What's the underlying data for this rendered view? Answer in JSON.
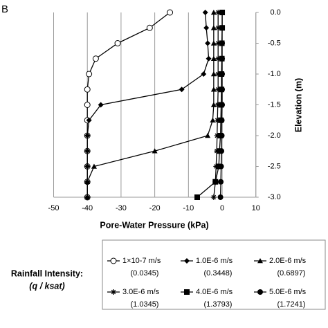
{
  "chart_data": {
    "type": "line",
    "panel_label": "B",
    "x_label": "Pore-Water Pressure (kPa)",
    "y_label": "Elevation (m)",
    "legend_title": "Rainfall Intensity:",
    "legend_subtitle": "(q / ksat)",
    "xlim": [
      -50,
      10
    ],
    "xticks": [
      -50,
      -40,
      -30,
      -20,
      -10,
      0,
      10
    ],
    "ylim": [
      -3,
      0
    ],
    "yticks": [
      {
        "value": 0,
        "label": "0.0"
      },
      -0.5,
      {
        "value": -1,
        "label": "-1.0"
      },
      -1.5,
      {
        "value": -2,
        "label": "-2.0"
      },
      -2.5,
      {
        "value": -3,
        "label": "-3.0"
      }
    ],
    "grid": true,
    "y": [
      0,
      -0.25,
      -0.5,
      -0.75,
      -1,
      -1.25,
      -1.5,
      -1.75,
      -2,
      -2.25,
      -2.5,
      -2.75,
      -3
    ],
    "series": [
      {
        "name": "1×10-7 m/s",
        "ratio_label": "(0.0345)",
        "color": "#000000",
        "marker": "circle-open",
        "x": [
          -15.5,
          -21.5,
          -31,
          -37.5,
          -39.5,
          -40,
          -40,
          -40,
          -40,
          -40,
          -40,
          -40,
          -40
        ]
      },
      {
        "name": "1.0E-6 m/s",
        "ratio_label": "(0.3448)",
        "color": "#000000",
        "marker": "diamond",
        "x": [
          -5,
          -4.7,
          -4.3,
          -4,
          -5.5,
          -12,
          -36,
          -39.5,
          -40,
          -40,
          -40,
          -40,
          -40
        ]
      },
      {
        "name": "2.0E-6 m/s",
        "ratio_label": "(0.6897)",
        "color": "#000000",
        "marker": "triangle",
        "x": [
          -2.5,
          -2.5,
          -2.5,
          -2.5,
          -2.5,
          -2.5,
          -2.5,
          -2.8,
          -4.3,
          -20,
          -38,
          -40,
          -40
        ]
      },
      {
        "name": "3.0E-6 m/s",
        "ratio_label": "(1.0345)",
        "color": "#000000",
        "marker": "asterisk",
        "x": [
          -1.2,
          -1.2,
          -1.2,
          -1.2,
          -1.2,
          -1.2,
          -1.3,
          -1.4,
          -1.5,
          -1.6,
          -1.8,
          -2,
          -2.5
        ]
      },
      {
        "name": "4.0E-6 m/s",
        "ratio_label": "(1.3793)",
        "color": "#000000",
        "marker": "square",
        "x": [
          0,
          0,
          -0.1,
          -0.1,
          -0.2,
          -0.2,
          -0.3,
          -0.4,
          -0.5,
          -0.8,
          -1,
          -2,
          -7.4
        ]
      },
      {
        "name": "5.0E-6 m/s",
        "ratio_label": "(1.7241)",
        "color": "#000000",
        "marker": "circle",
        "x": [
          0,
          0,
          0,
          0,
          0,
          0,
          0,
          -0.1,
          -0.1,
          -0.2,
          -0.3,
          -0.4,
          -0.5
        ]
      }
    ]
  }
}
